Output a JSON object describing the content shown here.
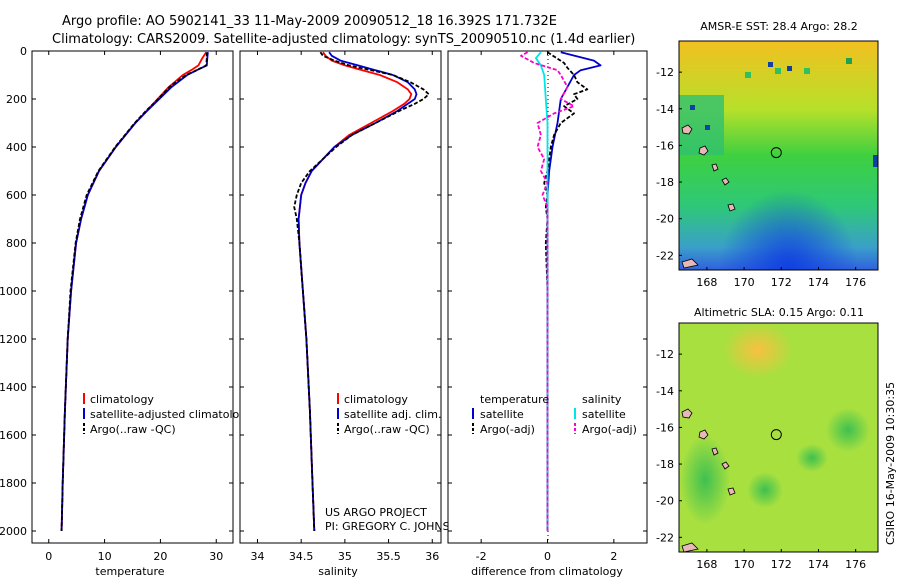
{
  "header": {
    "title_line1": "Argo profile: AO 5902141_33 11-May-2009 20090512_18 16.392S 171.732E",
    "title_line2": "Climatology: CARS2009. Satellite-adjusted climatology: synTS_20090510.nc (1.4d earlier)"
  },
  "project": {
    "line1": "US ARGO PROJECT",
    "line2": "PI: GREGORY C. JOHNSON"
  },
  "side_stamp": "CSIRO 16-May-2009 10:30:35",
  "colors": {
    "climatology": "#ff0000",
    "satellite": "#0000cc",
    "argo": "#000000",
    "satellite_salinity": "#00e5e5",
    "argo_salinity": "#ff00cc"
  },
  "chart_data": [
    {
      "type": "line",
      "xlabel": "temperature",
      "ylabel": "",
      "xlim": [
        -3,
        33
      ],
      "ylim": [
        0,
        2050
      ],
      "y_inverted": true,
      "xticks": [
        "0",
        "10",
        "20",
        "30"
      ],
      "xtick_values": [
        0,
        10,
        20,
        30
      ],
      "yticks": [
        "0",
        "200",
        "400",
        "600",
        "800",
        "1000",
        "1200",
        "1400",
        "1600",
        "1800",
        "2000"
      ],
      "ytick_values": [
        0,
        200,
        400,
        600,
        800,
        1000,
        1200,
        1400,
        1600,
        1800,
        2000
      ],
      "legend": [
        "climatology",
        "satellite-adjusted climatology",
        "Argo(..raw -QC)"
      ],
      "series": [
        {
          "name": "climatology",
          "color": "#ff0000",
          "depth": [
            5,
            30,
            60,
            80,
            100,
            150,
            200,
            250,
            300,
            400,
            500,
            600,
            700,
            800,
            1000,
            1200,
            1500,
            1800,
            2000
          ],
          "values": [
            28.2,
            27.5,
            26.8,
            25.5,
            24.0,
            21.5,
            19.5,
            17.5,
            15.5,
            12.0,
            9.0,
            7.0,
            5.8,
            4.9,
            4.0,
            3.4,
            2.9,
            2.5,
            2.3
          ]
        },
        {
          "name": "satellite-adjusted climatology",
          "color": "#0000cc",
          "depth": [
            5,
            30,
            60,
            80,
            100,
            150,
            200,
            250,
            300,
            400,
            500,
            600,
            700,
            800,
            1000,
            1200,
            1500,
            1800,
            2000
          ],
          "values": [
            28.5,
            28.4,
            28.3,
            26.5,
            24.8,
            22.0,
            19.8,
            17.6,
            15.5,
            12.0,
            9.0,
            7.0,
            5.8,
            4.9,
            4.0,
            3.4,
            2.9,
            2.5,
            2.3
          ]
        },
        {
          "name": "Argo(..raw -QC)",
          "color": "#000000",
          "depth": [
            5,
            30,
            60,
            80,
            100,
            150,
            200,
            250,
            300,
            400,
            500,
            600,
            700,
            800,
            1000,
            1200,
            1500,
            1800,
            2000
          ],
          "values": [
            28.3,
            28.3,
            28.2,
            26.5,
            24.6,
            21.6,
            19.6,
            17.4,
            15.4,
            11.9,
            8.9,
            6.8,
            5.6,
            4.8,
            3.9,
            3.4,
            2.9,
            2.5,
            2.3
          ]
        }
      ]
    },
    {
      "type": "line",
      "xlabel": "salinity",
      "xlim": [
        33.8,
        36.1
      ],
      "ylim": [
        0,
        2050
      ],
      "y_inverted": true,
      "xticks": [
        "34",
        "34.5",
        "35",
        "35.5",
        "36"
      ],
      "xtick_values": [
        34,
        34.5,
        35,
        35.5,
        36
      ],
      "legend": [
        "climatology",
        "satellite adj. clim.",
        "Argo(..raw -QC)"
      ],
      "series": [
        {
          "name": "climatology",
          "color": "#ff0000",
          "depth": [
            5,
            20,
            40,
            60,
            80,
            100,
            130,
            160,
            180,
            200,
            220,
            250,
            300,
            350,
            400,
            450,
            500,
            550,
            600,
            700,
            800,
            1000,
            1200,
            1500,
            1800,
            2000
          ],
          "values": [
            34.75,
            34.78,
            34.85,
            35.0,
            35.2,
            35.4,
            35.6,
            35.72,
            35.76,
            35.74,
            35.68,
            35.55,
            35.3,
            35.05,
            34.88,
            34.75,
            34.62,
            34.55,
            34.5,
            34.47,
            34.48,
            34.52,
            34.56,
            34.6,
            34.63,
            34.65
          ]
        },
        {
          "name": "satellite adj. clim.",
          "color": "#0000cc",
          "depth": [
            5,
            20,
            40,
            60,
            80,
            100,
            130,
            160,
            180,
            200,
            220,
            250,
            300,
            350,
            400,
            450,
            500,
            550,
            600,
            700,
            800,
            1000,
            1200,
            1500,
            1800,
            2000
          ],
          "values": [
            34.82,
            34.85,
            34.95,
            35.15,
            35.35,
            35.55,
            35.72,
            35.8,
            35.82,
            35.8,
            35.72,
            35.6,
            35.35,
            35.08,
            34.88,
            34.75,
            34.62,
            34.55,
            34.5,
            34.47,
            34.48,
            34.52,
            34.56,
            34.6,
            34.63,
            34.65
          ]
        },
        {
          "name": "Argo(..raw -QC)",
          "color": "#000000",
          "depth": [
            5,
            20,
            40,
            60,
            80,
            100,
            130,
            160,
            180,
            200,
            220,
            250,
            300,
            350,
            400,
            450,
            500,
            550,
            600,
            650,
            700,
            800,
            1000,
            1200,
            1500,
            1800,
            2000
          ],
          "values": [
            34.72,
            34.75,
            34.88,
            35.05,
            35.3,
            35.55,
            35.75,
            35.9,
            35.96,
            35.9,
            35.8,
            35.62,
            35.35,
            35.08,
            34.9,
            34.75,
            34.6,
            34.5,
            34.45,
            34.42,
            34.45,
            34.48,
            34.52,
            34.56,
            34.6,
            34.63,
            34.65
          ]
        }
      ]
    },
    {
      "type": "line",
      "xlabel": "difference from climatology",
      "xlim": [
        -3,
        3
      ],
      "ylim": [
        0,
        2050
      ],
      "y_inverted": true,
      "xticks": [
        "-2",
        "0",
        "2"
      ],
      "xtick_values": [
        -2,
        0,
        2
      ],
      "legend_headers": [
        "temperature",
        "salinity"
      ],
      "legend": [
        "satellite",
        "Argo(-adj)",
        "satellite",
        "Argo(-adj)"
      ],
      "series": [
        {
          "name": "temperature satellite",
          "color": "#0000cc",
          "depth": [
            5,
            40,
            60,
            80,
            100,
            150,
            200,
            300,
            400,
            500,
            600,
            700,
            800,
            1000,
            1500,
            2000
          ],
          "values": [
            0.4,
            1.4,
            1.6,
            1.0,
            0.8,
            0.6,
            0.4,
            0.3,
            0.15,
            0.05,
            0.0,
            0.0,
            0.0,
            0.0,
            0.0,
            0.0
          ]
        },
        {
          "name": "temperature Argo(-adj)",
          "color": "#000000",
          "depth": [
            5,
            50,
            70,
            100,
            130,
            160,
            180,
            200,
            230,
            260,
            300,
            350,
            400,
            450,
            500,
            550,
            600,
            650,
            700,
            800,
            1000,
            1500,
            2000
          ],
          "values": [
            0.0,
            0.5,
            0.6,
            0.8,
            0.9,
            1.2,
            0.8,
            0.9,
            0.5,
            0.8,
            0.4,
            0.2,
            0.1,
            0.05,
            0.0,
            -0.1,
            0.0,
            -0.05,
            0.0,
            -0.05,
            0.0,
            0.0,
            0.0
          ]
        },
        {
          "name": "salinity satellite",
          "color": "#00e5e5",
          "depth": [
            5,
            30,
            60,
            100,
            200,
            300,
            400,
            500,
            600,
            700,
            800,
            1000,
            1200,
            1500,
            2000
          ],
          "values": [
            -0.2,
            -0.35,
            -0.2,
            -0.1,
            -0.05,
            0.0,
            0.0,
            0.0,
            0.0,
            0.0,
            0.0,
            0.0,
            0.0,
            0.0,
            0.0
          ]
        },
        {
          "name": "salinity Argo(-adj)",
          "color": "#ff00cc",
          "depth": [
            5,
            20,
            50,
            80,
            100,
            150,
            200,
            230,
            260,
            300,
            350,
            400,
            450,
            500,
            550,
            600,
            650,
            700,
            800,
            1000,
            1500,
            2000
          ],
          "values": [
            -0.6,
            -0.8,
            -0.4,
            0.3,
            0.4,
            0.6,
            0.4,
            0.8,
            0.2,
            -0.3,
            -0.2,
            -0.3,
            -0.1,
            -0.2,
            0.0,
            -0.15,
            0.0,
            0.0,
            0.0,
            0.0,
            0.0,
            0.0
          ]
        }
      ]
    }
  ],
  "maps": [
    {
      "title": "AMSR-E SST: 28.4 Argo: 28.2",
      "xticks": [
        "168",
        "170",
        "172",
        "174",
        "176"
      ],
      "xtick_values": [
        168,
        170,
        172,
        174,
        176
      ],
      "yticks": [
        "-12",
        "-14",
        "-16",
        "-18",
        "-20",
        "-22"
      ],
      "ytick_values": [
        -12,
        -14,
        -16,
        -18,
        -20,
        -22
      ],
      "lon_range": [
        166.5,
        177.2
      ],
      "lat_range": [
        -22.8,
        -10.3
      ],
      "marker": {
        "lon": 171.732,
        "lat": -16.392
      }
    },
    {
      "title": "Altimetric SLA: 0.15 Argo: 0.11",
      "xticks": [
        "168",
        "170",
        "172",
        "174",
        "176"
      ],
      "xtick_values": [
        168,
        170,
        172,
        174,
        176
      ],
      "yticks": [
        "-12",
        "-14",
        "-16",
        "-18",
        "-20",
        "-22"
      ],
      "ytick_values": [
        -12,
        -14,
        -16,
        -18,
        -20,
        -22
      ],
      "lon_range": [
        166.5,
        177.2
      ],
      "lat_range": [
        -22.8,
        -10.3
      ],
      "marker": {
        "lon": 171.732,
        "lat": -16.392
      }
    }
  ]
}
